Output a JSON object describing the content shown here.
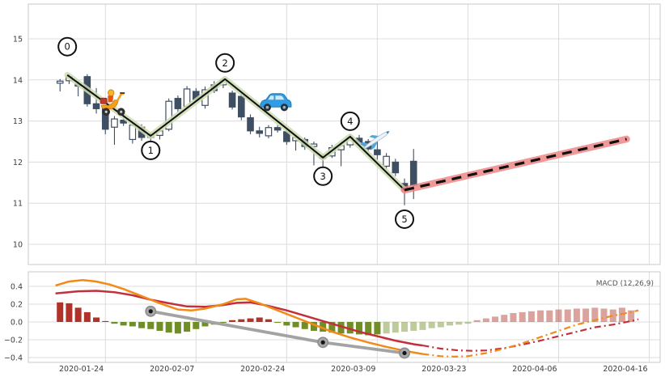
{
  "chart_data": {
    "type": "candlestick",
    "title": "",
    "x_axis": {
      "xlim": [
        -3.5,
        66.2
      ],
      "ticks": [
        {
          "i": 5,
          "label": "2020-01-24"
        },
        {
          "i": 15,
          "label": "2020-02-07"
        },
        {
          "i": 25,
          "label": "2020-02-24"
        },
        {
          "i": 35,
          "label": "2020-03-09"
        },
        {
          "i": 45,
          "label": "2020-03-23"
        },
        {
          "i": 55,
          "label": "2020-04-06"
        },
        {
          "i": 65,
          "label": "2020-04-16"
        }
      ]
    },
    "price_panel": {
      "ylim": [
        9.508,
        15.846
      ],
      "yticks": [
        {
          "v": 10,
          "label": "10"
        },
        {
          "v": 11,
          "label": "11"
        },
        {
          "v": 12,
          "label": "12"
        },
        {
          "v": 13,
          "label": "13"
        },
        {
          "v": 14,
          "label": "14"
        },
        {
          "v": 15,
          "label": "15"
        }
      ],
      "candles": [
        [
          13.92,
          14.02,
          13.72,
          13.97
        ],
        [
          13.98,
          14.14,
          13.9,
          14.08
        ],
        [
          13.9,
          13.97,
          13.6,
          13.85
        ],
        [
          14.08,
          14.14,
          13.35,
          13.42
        ],
        [
          13.42,
          13.8,
          13.18,
          13.3
        ],
        [
          13.3,
          13.38,
          12.68,
          12.8
        ],
        [
          12.85,
          13.12,
          12.42,
          13.05
        ],
        [
          13.02,
          13.28,
          12.88,
          12.95
        ],
        [
          12.55,
          12.98,
          12.45,
          12.9
        ],
        [
          12.85,
          12.92,
          12.52,
          12.6
        ],
        [
          12.6,
          12.72,
          12.46,
          12.68
        ],
        [
          12.65,
          12.82,
          12.55,
          12.76
        ],
        [
          12.8,
          13.55,
          12.75,
          13.48
        ],
        [
          13.55,
          13.62,
          13.22,
          13.3
        ],
        [
          13.35,
          13.85,
          13.3,
          13.78
        ],
        [
          13.72,
          13.8,
          13.46,
          13.52
        ],
        [
          13.38,
          13.84,
          13.3,
          13.76
        ],
        [
          13.88,
          13.97,
          13.68,
          13.74
        ],
        [
          13.88,
          14.06,
          13.8,
          14.0
        ],
        [
          13.68,
          13.74,
          13.28,
          13.34
        ],
        [
          13.6,
          13.67,
          13.02,
          13.1
        ],
        [
          13.08,
          13.16,
          12.68,
          12.76
        ],
        [
          12.76,
          12.86,
          12.6,
          12.7
        ],
        [
          12.64,
          12.9,
          12.58,
          12.84
        ],
        [
          12.84,
          12.9,
          12.72,
          12.78
        ],
        [
          12.74,
          12.8,
          12.42,
          12.5
        ],
        [
          12.52,
          12.65,
          12.28,
          12.6
        ],
        [
          12.55,
          12.6,
          12.3,
          12.38
        ],
        [
          12.38,
          12.5,
          11.92,
          12.44
        ],
        [
          12.1,
          12.2,
          11.86,
          12.12
        ],
        [
          12.15,
          12.42,
          12.1,
          12.35
        ],
        [
          12.3,
          12.48,
          11.9,
          12.4
        ],
        [
          12.42,
          12.68,
          12.35,
          12.6
        ],
        [
          12.58,
          12.66,
          12.42,
          12.48
        ],
        [
          12.5,
          12.56,
          12.25,
          12.32
        ],
        [
          12.3,
          12.5,
          12.05,
          12.18
        ],
        [
          11.9,
          12.22,
          11.82,
          12.14
        ],
        [
          12.0,
          12.08,
          11.66,
          11.74
        ],
        [
          11.48,
          11.6,
          10.95,
          11.3
        ],
        [
          12.02,
          12.32,
          11.1,
          11.44
        ]
      ],
      "zigzag": {
        "pivots": [
          {
            "label": "0",
            "i": 0.8,
            "price": 14.12,
            "circle_dy": -35
          },
          {
            "label": "1",
            "i": 10,
            "price": 12.64,
            "circle_dy": 18
          },
          {
            "label": "2",
            "i": 18.2,
            "price": 14.02,
            "circle_dy": -20
          },
          {
            "label": "3",
            "i": 29,
            "price": 12.11,
            "circle_dy": 23
          },
          {
            "label": "4",
            "i": 32,
            "price": 12.62,
            "circle_dy": -19
          },
          {
            "label": "5",
            "i": 38,
            "price": 11.32,
            "circle_dy": 36
          }
        ]
      },
      "forecast": {
        "from": {
          "i": 38,
          "price": 11.32
        },
        "to": {
          "i": 62.5,
          "price": 12.56
        }
      },
      "icon_markers": [
        {
          "name": "scooter-icon",
          "i": 5.8,
          "price": 13.44
        },
        {
          "name": "car-icon",
          "i": 23.8,
          "price": 13.46
        },
        {
          "name": "plane-icon",
          "i": 34.9,
          "price": 12.5
        }
      ]
    },
    "macd_panel": {
      "label": "MACD (12,26,9)",
      "ylim": [
        -0.455,
        0.564
      ],
      "yticks": [
        {
          "v": 0.4,
          "label": "0.4"
        },
        {
          "v": 0.2,
          "label": "0.2"
        },
        {
          "v": 0.0,
          "label": "0.0"
        },
        {
          "v": -0.2,
          "label": "−0.2"
        },
        {
          "v": -0.4,
          "label": "−0.4"
        }
      ],
      "histogram": {
        "forecast_from": 36,
        "values": [
          0.22,
          0.21,
          0.16,
          0.11,
          0.05,
          0.01,
          -0.02,
          -0.04,
          -0.05,
          -0.07,
          -0.08,
          -0.1,
          -0.12,
          -0.13,
          -0.11,
          -0.08,
          -0.05,
          -0.03,
          -0.01,
          0.02,
          0.03,
          0.04,
          0.05,
          0.03,
          -0.01,
          -0.04,
          -0.06,
          -0.08,
          -0.1,
          -0.11,
          -0.12,
          -0.13,
          -0.13,
          -0.14,
          -0.15,
          -0.14,
          -0.13,
          -0.12,
          -0.11,
          -0.1,
          -0.09,
          -0.07,
          -0.06,
          -0.04,
          -0.03,
          -0.02,
          0.02,
          0.04,
          0.06,
          0.08,
          0.1,
          0.11,
          0.12,
          0.13,
          0.13,
          0.14,
          0.14,
          0.15,
          0.15,
          0.16,
          0.15,
          0.14,
          0.16,
          0.13
        ]
      },
      "macd_line": {
        "actual": [
          [
            -0.5,
            0.32
          ],
          [
            2,
            0.345
          ],
          [
            4,
            0.35
          ],
          [
            6,
            0.335
          ],
          [
            8,
            0.3
          ],
          [
            10,
            0.25
          ],
          [
            12,
            0.21
          ],
          [
            14,
            0.175
          ],
          [
            16,
            0.17
          ],
          [
            18,
            0.19
          ],
          [
            19.5,
            0.215
          ],
          [
            21,
            0.22
          ],
          [
            23,
            0.18
          ],
          [
            25,
            0.13
          ],
          [
            27,
            0.07
          ],
          [
            29,
            0.01
          ],
          [
            31,
            -0.05
          ],
          [
            33,
            -0.11
          ],
          [
            35,
            -0.16
          ],
          [
            37,
            -0.21
          ],
          [
            39,
            -0.25
          ],
          [
            40,
            -0.265
          ]
        ],
        "forecast": [
          [
            40,
            -0.265
          ],
          [
            42,
            -0.3
          ],
          [
            44,
            -0.32
          ],
          [
            45.5,
            -0.325
          ],
          [
            47,
            -0.32
          ],
          [
            49,
            -0.295
          ],
          [
            51,
            -0.255
          ],
          [
            53,
            -0.21
          ],
          [
            55,
            -0.16
          ],
          [
            57,
            -0.11
          ],
          [
            59,
            -0.06
          ],
          [
            61,
            -0.03
          ],
          [
            63,
            0.01
          ],
          [
            63.8,
            0.03
          ]
        ]
      },
      "signal_line": {
        "actual": [
          [
            -0.5,
            0.41
          ],
          [
            1,
            0.455
          ],
          [
            2.5,
            0.47
          ],
          [
            4,
            0.455
          ],
          [
            5.5,
            0.42
          ],
          [
            7,
            0.37
          ],
          [
            9,
            0.29
          ],
          [
            11,
            0.21
          ],
          [
            13,
            0.14
          ],
          [
            14.5,
            0.13
          ],
          [
            16,
            0.15
          ],
          [
            18,
            0.2
          ],
          [
            19.5,
            0.255
          ],
          [
            20.5,
            0.26
          ],
          [
            22,
            0.21
          ],
          [
            24,
            0.13
          ],
          [
            26,
            0.05
          ],
          [
            28,
            -0.03
          ],
          [
            30,
            -0.11
          ],
          [
            32,
            -0.175
          ],
          [
            34,
            -0.23
          ],
          [
            36,
            -0.28
          ],
          [
            38,
            -0.325
          ],
          [
            40,
            -0.36
          ]
        ],
        "forecast": [
          [
            40,
            -0.36
          ],
          [
            42,
            -0.385
          ],
          [
            43.5,
            -0.39
          ],
          [
            45,
            -0.385
          ],
          [
            47,
            -0.35
          ],
          [
            49,
            -0.3
          ],
          [
            51,
            -0.24
          ],
          [
            53,
            -0.17
          ],
          [
            55,
            -0.1
          ],
          [
            57,
            -0.03
          ],
          [
            59,
            0.02
          ],
          [
            61,
            0.07
          ],
          [
            63,
            0.11
          ],
          [
            63.8,
            0.13
          ]
        ]
      },
      "pivot_line": {
        "points": [
          [
            10,
            0.12
          ],
          [
            29,
            -0.23
          ],
          [
            38,
            -0.35
          ]
        ]
      }
    },
    "colors": {
      "candle": "#3f4f63",
      "zigzag_band": "#ccdcb0",
      "zigzag_line": "#101010",
      "forecast_band": "#ee8080",
      "forecast_line": "#101010",
      "macd": "#c2303c",
      "signal": "#f28a1a",
      "pivot": "#a3a3a3",
      "pivot_marker_core": "#151515",
      "hist_pos": "#b03228",
      "hist_neg": "#6f8e26",
      "grid": "#dcdcdc",
      "spine": "#c8c8c8",
      "text": "#3c3c3c",
      "macd_label": "#555555"
    }
  }
}
